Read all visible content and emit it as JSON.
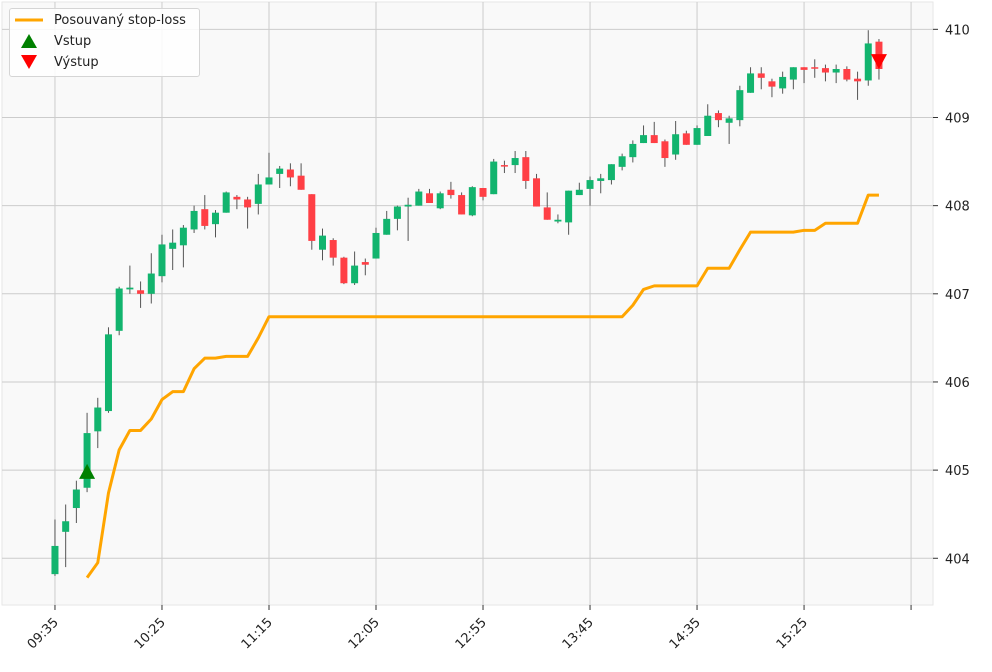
{
  "chart_data": {
    "type": "candlestick",
    "title": "",
    "xlabel": "",
    "ylabel": "",
    "interval_minutes": 5,
    "start_time": "09:35",
    "x_ticks": [
      {
        "index": 0,
        "label": "09:35"
      },
      {
        "index": 10,
        "label": "10:25"
      },
      {
        "index": 20,
        "label": "11:15"
      },
      {
        "index": 30,
        "label": "12:05"
      },
      {
        "index": 40,
        "label": "12:55"
      },
      {
        "index": 50,
        "label": "13:45"
      },
      {
        "index": 60,
        "label": "14:35"
      },
      {
        "index": 70,
        "label": "15:25"
      },
      {
        "index": 80,
        "label": ""
      }
    ],
    "y_ticks": [
      404,
      405,
      406,
      407,
      408,
      409,
      410
    ],
    "ylim": [
      403.47,
      410.31
    ],
    "xlim": [
      -4.95,
      82.05
    ],
    "grid": true,
    "y_axis_side": "right",
    "legend_position": "top-left",
    "colors": {
      "up": "#12b46e",
      "down": "#ff3f45",
      "wick": "#555555",
      "stop": "#ffa500",
      "entry": "#008000",
      "exit": "#ff0000",
      "background": "#f9f9f9",
      "grid": "#cccccc"
    },
    "ohlc": [
      [
        403.82,
        404.44,
        403.8,
        404.14
      ],
      [
        404.3,
        404.61,
        403.9,
        404.42
      ],
      [
        404.57,
        404.88,
        404.4,
        404.78
      ],
      [
        404.8,
        405.65,
        404.75,
        405.42
      ],
      [
        405.44,
        405.82,
        405.25,
        405.71
      ],
      [
        405.67,
        406.62,
        405.65,
        406.54
      ],
      [
        406.58,
        407.08,
        406.53,
        407.06
      ],
      [
        407.05,
        407.32,
        407.0,
        407.07
      ],
      [
        407.04,
        407.14,
        406.84,
        407.0
      ],
      [
        407.0,
        407.46,
        406.89,
        407.23
      ],
      [
        407.2,
        407.67,
        407.13,
        407.56
      ],
      [
        407.51,
        407.73,
        407.27,
        407.58
      ],
      [
        407.55,
        407.78,
        407.3,
        407.75
      ],
      [
        407.73,
        408.0,
        407.69,
        407.94
      ],
      [
        407.96,
        408.12,
        407.73,
        407.77
      ],
      [
        407.79,
        407.95,
        407.64,
        407.92
      ],
      [
        407.92,
        408.16,
        407.92,
        408.15
      ],
      [
        408.1,
        408.12,
        407.96,
        408.07
      ],
      [
        408.07,
        408.1,
        407.74,
        407.98
      ],
      [
        408.02,
        408.36,
        407.9,
        408.24
      ],
      [
        408.24,
        408.6,
        408.24,
        408.32
      ],
      [
        408.36,
        408.45,
        408.2,
        408.42
      ],
      [
        408.41,
        408.48,
        408.22,
        408.32
      ],
      [
        408.34,
        408.48,
        408.18,
        408.18
      ],
      [
        408.13,
        408.13,
        407.5,
        407.6
      ],
      [
        407.5,
        407.74,
        407.38,
        407.66
      ],
      [
        407.61,
        407.63,
        407.32,
        407.41
      ],
      [
        407.41,
        407.42,
        407.11,
        407.12
      ],
      [
        407.12,
        407.48,
        407.1,
        407.32
      ],
      [
        407.36,
        407.4,
        407.21,
        407.33
      ],
      [
        407.4,
        407.75,
        407.4,
        407.69
      ],
      [
        407.67,
        407.94,
        407.67,
        407.85
      ],
      [
        407.85,
        408.0,
        407.72,
        407.99
      ],
      [
        407.99,
        408.09,
        407.6,
        408.01
      ],
      [
        408.0,
        408.19,
        408.0,
        408.16
      ],
      [
        408.14,
        408.19,
        408.03,
        408.03
      ],
      [
        407.97,
        408.16,
        407.96,
        408.14
      ],
      [
        408.18,
        408.27,
        408.08,
        408.12
      ],
      [
        408.12,
        408.15,
        407.9,
        407.9
      ],
      [
        407.89,
        408.22,
        407.88,
        408.21
      ],
      [
        408.2,
        408.2,
        408.06,
        408.1
      ],
      [
        408.13,
        408.53,
        408.13,
        408.5
      ],
      [
        408.46,
        408.51,
        408.37,
        408.45
      ],
      [
        408.46,
        408.62,
        408.37,
        408.54
      ],
      [
        408.55,
        408.62,
        408.19,
        408.28
      ],
      [
        408.31,
        408.36,
        407.99,
        407.99
      ],
      [
        407.98,
        408.15,
        407.84,
        407.84
      ],
      [
        407.82,
        407.9,
        407.8,
        407.84
      ],
      [
        407.81,
        408.17,
        407.67,
        408.17
      ],
      [
        408.12,
        408.26,
        408.12,
        408.18
      ],
      [
        408.19,
        408.33,
        408.0,
        408.29
      ],
      [
        408.28,
        408.36,
        408.14,
        408.31
      ],
      [
        408.29,
        408.47,
        408.24,
        408.47
      ],
      [
        408.44,
        408.59,
        408.4,
        408.56
      ],
      [
        408.55,
        408.74,
        408.49,
        408.7
      ],
      [
        408.71,
        408.91,
        408.71,
        408.8
      ],
      [
        408.8,
        408.95,
        408.71,
        408.71
      ],
      [
        408.73,
        408.75,
        408.44,
        408.54
      ],
      [
        408.58,
        408.96,
        408.52,
        408.81
      ],
      [
        408.82,
        408.85,
        408.69,
        408.69
      ],
      [
        408.69,
        408.91,
        408.69,
        408.88
      ],
      [
        408.79,
        409.15,
        408.79,
        409.02
      ],
      [
        409.05,
        409.08,
        408.89,
        408.97
      ],
      [
        408.94,
        409.02,
        408.7,
        408.99
      ],
      [
        408.97,
        409.36,
        408.9,
        409.31
      ],
      [
        409.28,
        409.57,
        409.28,
        409.5
      ],
      [
        409.5,
        409.57,
        409.32,
        409.45
      ],
      [
        409.41,
        409.44,
        409.23,
        409.35
      ],
      [
        409.33,
        409.52,
        409.27,
        409.46
      ],
      [
        409.43,
        409.57,
        409.32,
        409.57
      ],
      [
        409.57,
        409.57,
        409.39,
        409.54
      ],
      [
        409.57,
        409.66,
        409.45,
        409.56
      ],
      [
        409.56,
        409.6,
        409.41,
        409.51
      ],
      [
        409.51,
        409.6,
        409.39,
        409.55
      ],
      [
        409.55,
        409.58,
        409.41,
        409.43
      ],
      [
        409.44,
        409.52,
        409.2,
        409.41
      ],
      [
        409.42,
        409.99,
        409.36,
        409.84
      ],
      [
        409.86,
        409.89,
        409.43,
        409.55
      ]
    ],
    "series": [
      {
        "name": "Posouvaný stop-loss",
        "start_index": 3,
        "values": [
          403.78,
          403.95,
          404.74,
          405.23,
          405.45,
          405.45,
          405.58,
          405.8,
          405.89,
          405.89,
          406.15,
          406.27,
          406.27,
          406.29,
          406.29,
          406.29,
          406.5,
          406.74,
          406.74,
          406.74,
          406.74,
          406.74,
          406.74,
          406.74,
          406.74,
          406.74,
          406.74,
          406.74,
          406.74,
          406.74,
          406.74,
          406.74,
          406.74,
          406.74,
          406.74,
          406.74,
          406.74,
          406.74,
          406.74,
          406.74,
          406.74,
          406.74,
          406.74,
          406.74,
          406.74,
          406.74,
          406.74,
          406.74,
          406.74,
          406.74,
          406.74,
          406.87,
          407.05,
          407.09,
          407.09,
          407.09,
          407.09,
          407.09,
          407.29,
          407.29,
          407.29,
          407.5,
          407.7,
          407.7,
          407.7,
          407.7,
          407.7,
          407.72,
          407.72,
          407.8,
          407.8,
          407.8,
          407.8,
          408.12,
          408.12
        ]
      }
    ],
    "markers": [
      {
        "name": "Vstup",
        "index": 3,
        "price": 404.98,
        "shape": "triangle-up"
      },
      {
        "name": "Výstup",
        "index": 77,
        "price": 409.64,
        "shape": "triangle-down"
      }
    ],
    "legend": [
      "Posouvaný stop-loss",
      "Vstup",
      "Výstup"
    ]
  }
}
